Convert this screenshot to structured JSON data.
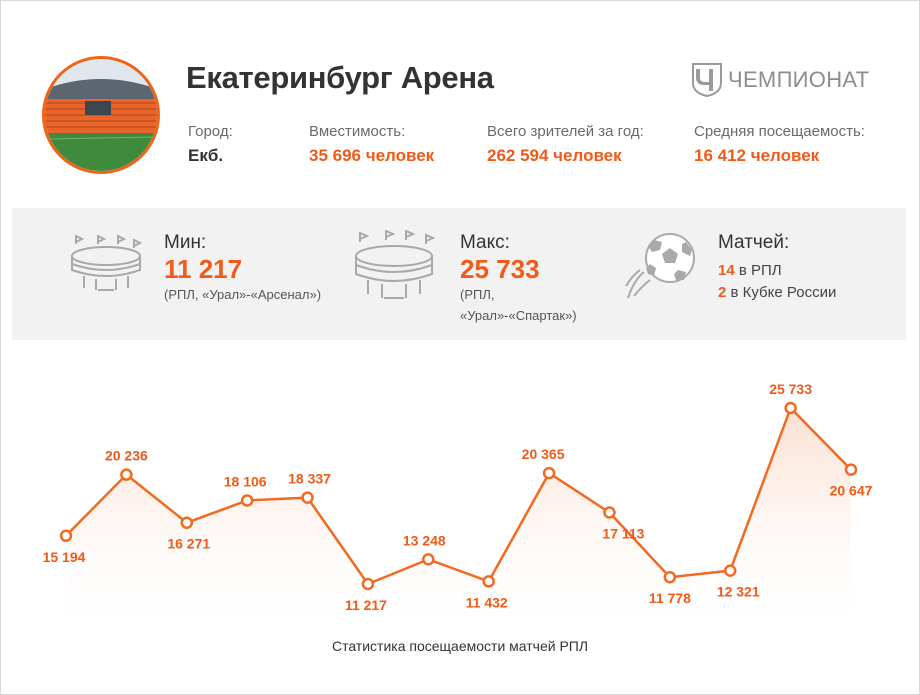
{
  "header": {
    "title": "Екатеринбург Арена",
    "logo_text": "ЧЕМПИОНАТ",
    "stats": [
      {
        "label": "Город:",
        "value": "Екб."
      },
      {
        "label": "Вместимость:",
        "value": "35 696 человек"
      },
      {
        "label": "Всего зрителей за год:",
        "value": "262 594 человек"
      },
      {
        "label": "Средняя посещаемость:",
        "value": "16 412 человек"
      }
    ]
  },
  "band": {
    "min": {
      "label": "Мин:",
      "value": "11 217",
      "note": "(РПЛ, «Урал»-«Арсенал»)"
    },
    "max": {
      "label": "Макс:",
      "value": "25 733",
      "note1": "(РПЛ,",
      "note2": "«Урал»-«Спартак»)"
    },
    "matches": {
      "label": "Матчей:",
      "rpl_count": "14",
      "rpl_text": " в РПЛ",
      "cup_count": "2",
      "cup_text": " в Кубке России"
    }
  },
  "colors": {
    "accent": "#f15a19",
    "line": "#f26a22",
    "band": "#f2f2f2"
  },
  "icons": [
    "stadium-icon",
    "stadium-large-icon",
    "soccer-ball-icon",
    "chempionat-logo-icon"
  ],
  "chart_data": {
    "type": "line",
    "title": "Статистика посещаемости матчей РПЛ",
    "labels": [
      "15 194",
      "20 236",
      "16 271",
      "18 106",
      "18 337",
      "11 217",
      "13 248",
      "11 432",
      "20 365",
      "17 113",
      "11 778",
      "12 321",
      "25 733",
      "20 647"
    ],
    "values": [
      15194,
      20236,
      16271,
      18106,
      18337,
      11217,
      13248,
      11432,
      20365,
      17113,
      11778,
      12321,
      25733,
      20647
    ],
    "grid": false
  }
}
